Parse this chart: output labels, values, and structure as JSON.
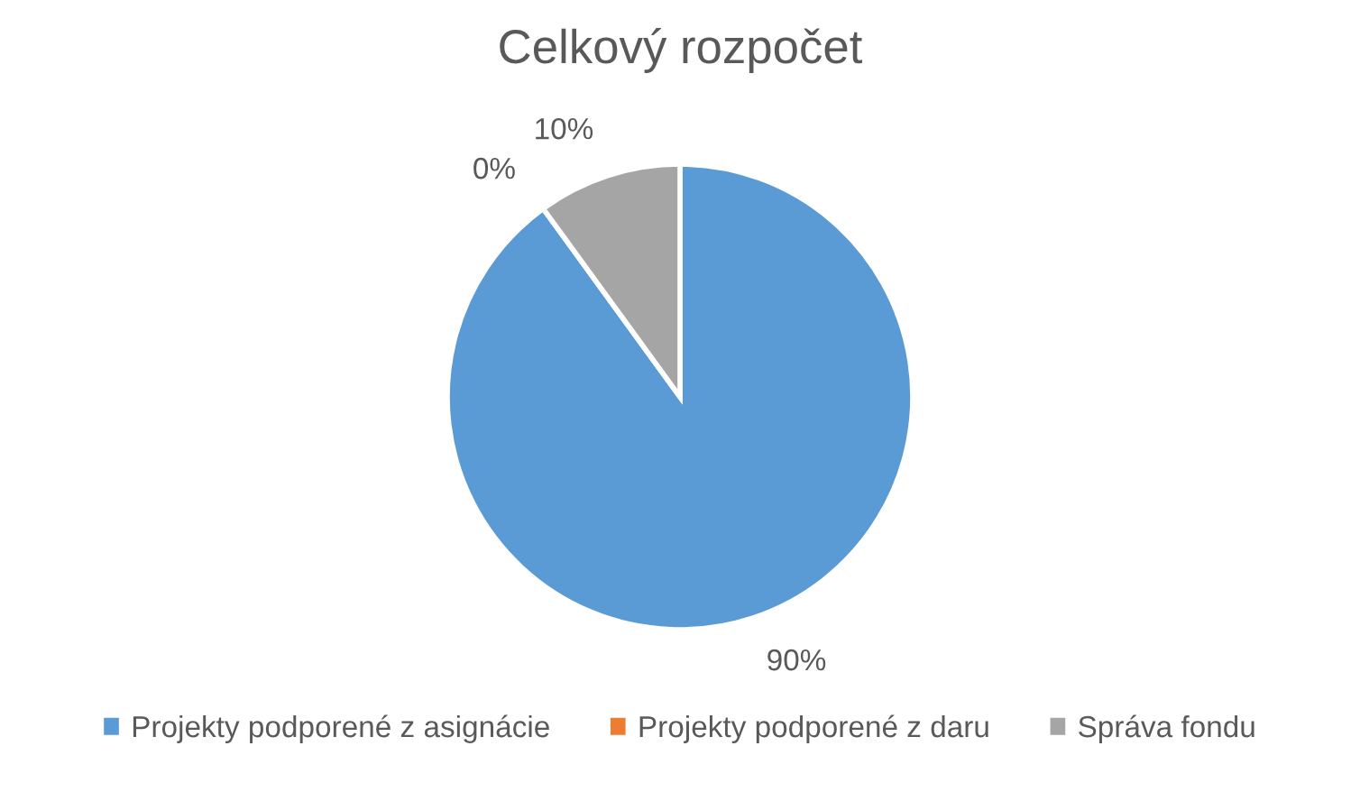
{
  "chart_data": {
    "type": "pie",
    "title": "Celkový rozpočet",
    "categories": [
      "Projekty podporené z asignácie",
      "Projekty podporené z daru",
      "Správa fondu"
    ],
    "values": [
      90,
      0,
      10
    ],
    "colors": [
      "#5b9bd5",
      "#ed7d31",
      "#a5a5a5"
    ],
    "value_labels": [
      "90%",
      "0%",
      "10%"
    ],
    "legend": "bottom"
  }
}
